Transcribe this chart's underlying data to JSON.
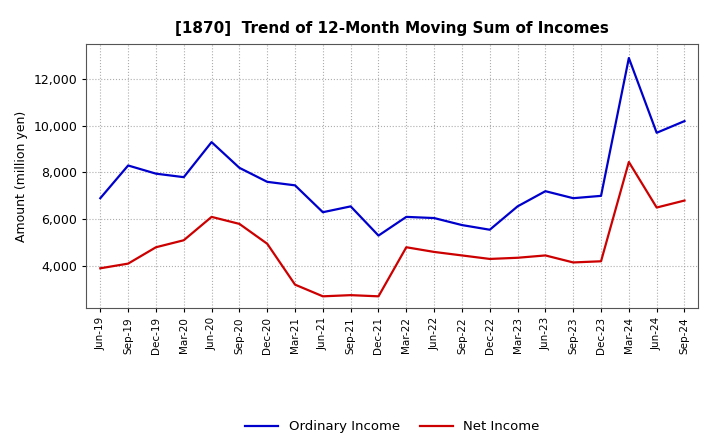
{
  "title": "[1870]  Trend of 12-Month Moving Sum of Incomes",
  "ylabel": "Amount (million yen)",
  "x_labels": [
    "Jun-19",
    "Sep-19",
    "Dec-19",
    "Mar-20",
    "Jun-20",
    "Sep-20",
    "Dec-20",
    "Mar-21",
    "Jun-21",
    "Sep-21",
    "Dec-21",
    "Mar-22",
    "Jun-22",
    "Sep-22",
    "Dec-22",
    "Mar-23",
    "Jun-23",
    "Sep-23",
    "Dec-23",
    "Mar-24",
    "Jun-24",
    "Sep-24"
  ],
  "ordinary_income": [
    6900,
    8300,
    7950,
    7800,
    9300,
    8200,
    7600,
    7450,
    6300,
    6550,
    5300,
    6100,
    6050,
    5750,
    5550,
    6550,
    7200,
    6900,
    7000,
    12900,
    9700,
    10200
  ],
  "net_income": [
    3900,
    4100,
    4800,
    5100,
    6100,
    5800,
    4950,
    3200,
    2700,
    2750,
    2700,
    4800,
    4600,
    4450,
    4300,
    4350,
    4450,
    4150,
    4200,
    8450,
    6500,
    6800
  ],
  "ordinary_color": "#0000cc",
  "net_color": "#cc0000",
  "ylim_min": 2200,
  "ylim_max": 13500,
  "yticks": [
    4000,
    6000,
    8000,
    10000,
    12000
  ],
  "background_color": "#ffffff",
  "grid_color": "#999999",
  "line_width": 1.6
}
